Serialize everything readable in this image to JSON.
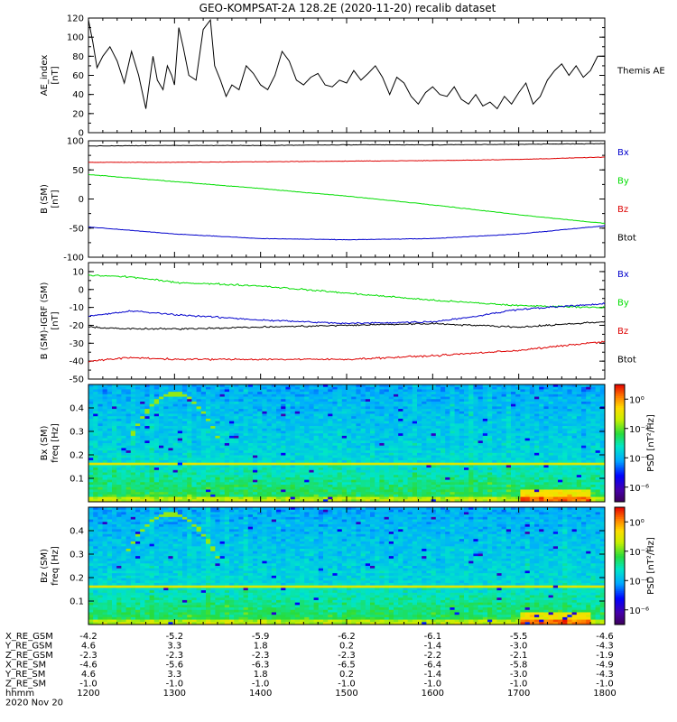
{
  "chart_data": {
    "type": "line",
    "title": "GEO-KOMPSAT-2A 128.2E (2020-11-20) recalib dataset",
    "time_range_hhmm": [
      1200,
      1800
    ],
    "panels": [
      {
        "id": "ae",
        "ylabel": "AE_index",
        "yunit": "[nT]",
        "ylim": [
          0,
          120
        ],
        "yticks": [
          0,
          20,
          40,
          60,
          80,
          100,
          120
        ],
        "legend": [
          "Themis AE"
        ],
        "series": [
          {
            "name": "Themis AE",
            "color": "#000000",
            "x": [
              1200,
              1203,
              1206,
              1210,
              1215,
              1220,
              1225,
              1230,
              1235,
              1240,
              1245,
              1248,
              1252,
              1255,
              1258,
              1300,
              1303,
              1306,
              1310,
              1315,
              1320,
              1325,
              1328,
              1332,
              1336,
              1340,
              1345,
              1350,
              1355,
              1400,
              1405,
              1410,
              1415,
              1420,
              1425,
              1430,
              1435,
              1440,
              1445,
              1450,
              1455,
              1500,
              1505,
              1510,
              1515,
              1520,
              1525,
              1530,
              1535,
              1540,
              1545,
              1550,
              1555,
              1600,
              1605,
              1610,
              1615,
              1620,
              1625,
              1630,
              1635,
              1640,
              1645,
              1650,
              1655,
              1700,
              1705,
              1710,
              1715,
              1720,
              1725,
              1730,
              1735,
              1740,
              1745,
              1750,
              1755,
              1800
            ],
            "values": [
              118,
              95,
              68,
              80,
              90,
              75,
              52,
              85,
              60,
              25,
              80,
              55,
              45,
              70,
              60,
              50,
              110,
              90,
              60,
              55,
              108,
              118,
              70,
              55,
              38,
              50,
              45,
              70,
              62,
              50,
              45,
              60,
              85,
              75,
              55,
              50,
              58,
              62,
              50,
              48,
              55,
              52,
              65,
              55,
              62,
              70,
              58,
              40,
              58,
              52,
              38,
              30,
              42,
              48,
              40,
              38,
              48,
              35,
              30,
              40,
              28,
              32,
              25,
              38,
              30,
              42,
              52,
              30,
              38,
              55,
              65,
              72,
              60,
              70,
              58,
              65,
              80,
              80
            ]
          }
        ]
      },
      {
        "id": "b_sm",
        "ylabel": "B (SM)",
        "yunit": "[nT]",
        "ylim": [
          -100,
          100
        ],
        "yticks": [
          -100,
          -50,
          0,
          50,
          100
        ],
        "legend": [
          "Bx",
          "By",
          "Bz",
          "Btot"
        ],
        "series": [
          {
            "name": "Btot",
            "color": "#000000",
            "x": [
              1200,
              1300,
              1400,
              1500,
              1600,
              1700,
              1800
            ],
            "values": [
              91,
              92,
              92,
              93,
              93,
              94,
              95
            ]
          },
          {
            "name": "Bz",
            "color": "#dd0000",
            "x": [
              1200,
              1300,
              1400,
              1500,
              1600,
              1700,
              1800
            ],
            "values": [
              63,
              63,
              64,
              65,
              66,
              68,
              72
            ]
          },
          {
            "name": "By",
            "color": "#00dd00",
            "x": [
              1200,
              1300,
              1400,
              1500,
              1600,
              1700,
              1800
            ],
            "values": [
              42,
              30,
              18,
              5,
              -10,
              -27,
              -42
            ]
          },
          {
            "name": "Bx",
            "color": "#0000cc",
            "x": [
              1200,
              1300,
              1400,
              1500,
              1600,
              1700,
              1800
            ],
            "values": [
              -48,
              -60,
              -68,
              -70,
              -68,
              -60,
              -46
            ]
          }
        ]
      },
      {
        "id": "db_sm",
        "ylabel": "B (SM)-IGRF (SM)",
        "yunit": "[nT]",
        "ylim": [
          -50,
          15
        ],
        "yticks": [
          -50,
          -40,
          -30,
          -20,
          -10,
          0,
          10
        ],
        "legend": [
          "Bx",
          "By",
          "Bz",
          "Btot"
        ],
        "series": [
          {
            "name": "By",
            "color": "#00dd00",
            "x": [
              1200,
              1230,
              1300,
              1400,
              1500,
              1600,
              1700,
              1800
            ],
            "values": [
              8,
              7,
              4,
              2,
              -2,
              -6,
              -9,
              -10
            ]
          },
          {
            "name": "Bx",
            "color": "#0000cc",
            "x": [
              1200,
              1230,
              1300,
              1400,
              1500,
              1600,
              1630,
              1700,
              1800
            ],
            "values": [
              -15,
              -12,
              -14,
              -17,
              -19,
              -18,
              -15,
              -11,
              -8
            ]
          },
          {
            "name": "Btot",
            "color": "#000000",
            "x": [
              1200,
              1230,
              1300,
              1400,
              1500,
              1600,
              1700,
              1800
            ],
            "values": [
              -21,
              -22,
              -22,
              -21,
              -20,
              -19,
              -21,
              -18
            ]
          },
          {
            "name": "Bz",
            "color": "#dd0000",
            "x": [
              1200,
              1230,
              1300,
              1400,
              1500,
              1600,
              1700,
              1800
            ],
            "values": [
              -40,
              -38,
              -39,
              -39,
              -39,
              -37,
              -34,
              -29
            ]
          }
        ]
      },
      {
        "id": "bx_psd",
        "type": "heatmap",
        "ylabel": "Bx (SM)",
        "yunit": "freq [Hz]",
        "ylim": [
          0,
          0.5
        ],
        "yticks": [
          0.1,
          0.2,
          0.3,
          0.4
        ],
        "colorbar": {
          "label": "PSD [nT²/Hz]",
          "ticks": [
            "10⁰",
            "10⁻²",
            "10⁻⁴",
            "10⁻⁶"
          ],
          "tick_exponents": [
            0,
            -2,
            -4,
            -6
          ],
          "range_exponent": [
            -7,
            1
          ]
        },
        "features": {
          "line_freq_hz": 0.168,
          "arc_peak_hz": 0.46,
          "arc_time_hhmm": [
            1230,
            1330
          ]
        }
      },
      {
        "id": "bz_psd",
        "type": "heatmap",
        "ylabel": "Bz (SM)",
        "yunit": "freq [Hz]",
        "ylim": [
          0,
          0.5
        ],
        "yticks": [
          0.1,
          0.2,
          0.3,
          0.4
        ],
        "colorbar": {
          "label": "PSD [nT²/Hz]",
          "ticks": [
            "10⁰",
            "10⁻²",
            "10⁻⁴",
            "10⁻⁶"
          ],
          "tick_exponents": [
            0,
            -2,
            -4,
            -6
          ],
          "range_exponent": [
            -7,
            1
          ]
        },
        "features": {
          "line_freq_hz": 0.168,
          "arc_peak_hz": 0.47,
          "arc_time_hhmm": [
            1225,
            1330
          ]
        }
      }
    ],
    "ephemeris": {
      "rows": [
        {
          "label": "X_RE_GSM",
          "values": [
            "-4.2",
            "-5.2",
            "-5.9",
            "-6.2",
            "-6.1",
            "-5.5",
            "-4.6"
          ]
        },
        {
          "label": "Y_RE_GSM",
          "values": [
            "4.6",
            "3.3",
            "1.8",
            "0.2",
            "-1.4",
            "-3.0",
            "-4.3"
          ]
        },
        {
          "label": "Z_RE_GSM",
          "values": [
            "-2.3",
            "-2.3",
            "-2.3",
            "-2.3",
            "-2.2",
            "-2.1",
            "-1.9"
          ]
        },
        {
          "label": "X_RE_SM",
          "values": [
            "-4.6",
            "-5.6",
            "-6.3",
            "-6.5",
            "-6.4",
            "-5.8",
            "-4.9"
          ]
        },
        {
          "label": "Y_RE_SM",
          "values": [
            "4.6",
            "3.3",
            "1.8",
            "0.2",
            "-1.4",
            "-3.0",
            "-4.3"
          ]
        },
        {
          "label": "Z_RE_SM",
          "values": [
            "-1.0",
            "-1.0",
            "-1.0",
            "-1.0",
            "-1.0",
            "-1.0",
            "-1.0"
          ]
        },
        {
          "label": "hhmm",
          "values": [
            "1200",
            "1300",
            "1400",
            "1500",
            "1600",
            "1700",
            "1800"
          ]
        }
      ],
      "date": "2020 Nov 20"
    }
  }
}
